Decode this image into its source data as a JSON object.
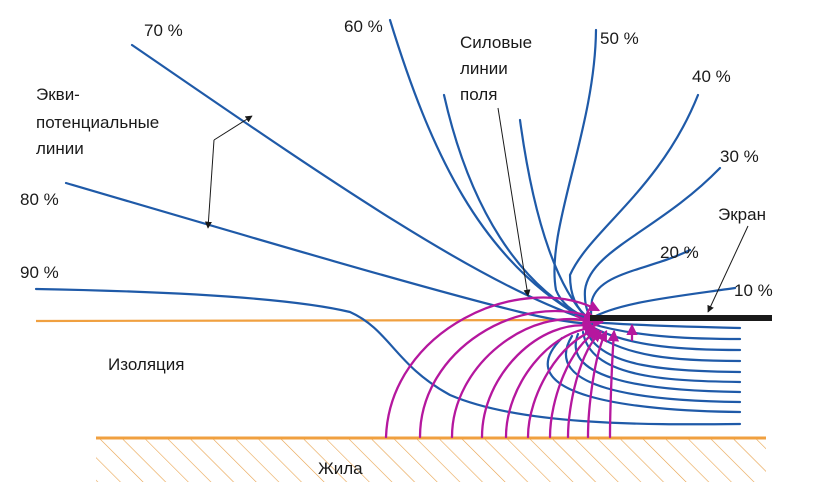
{
  "labels": {
    "equipotential_lines": [
      "Экви-",
      "потенциальные",
      "линии"
    ],
    "field_lines": [
      "Силовые",
      "линии",
      "поля"
    ],
    "screen": "Экран",
    "insulation": "Изоляция",
    "core": "Жила"
  },
  "percent_labels": [
    "70 %",
    "60 %",
    "50 %",
    "40 %",
    "30 %",
    "20 %",
    "10 %",
    "80 %",
    "90 %"
  ],
  "colors": {
    "equipotential": "#1f5aa8",
    "field": "#b5179e",
    "insulation_boundary": "#f0a040",
    "core": "#f0a040",
    "screen": "#1a1a1a"
  }
}
